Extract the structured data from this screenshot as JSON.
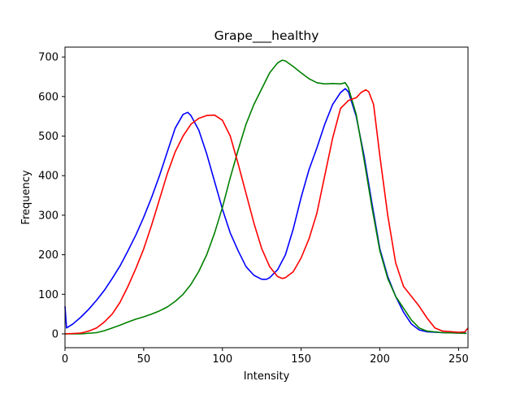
{
  "chart_data": {
    "type": "line",
    "title": "Grape___healthy",
    "xlabel": "Intensity",
    "ylabel": "Frequency",
    "xlim": [
      0,
      256
    ],
    "ylim": [
      -35,
      725
    ],
    "xticks": [
      0,
      50,
      100,
      150,
      200,
      250
    ],
    "yticks": [
      0,
      100,
      200,
      300,
      400,
      500,
      600,
      700
    ],
    "grid": false,
    "legend": "none",
    "series": [
      {
        "color": "#0000ff",
        "points": [
          [
            0,
            70
          ],
          [
            1,
            15
          ],
          [
            5,
            25
          ],
          [
            10,
            42
          ],
          [
            15,
            62
          ],
          [
            20,
            85
          ],
          [
            25,
            110
          ],
          [
            30,
            140
          ],
          [
            35,
            172
          ],
          [
            40,
            210
          ],
          [
            45,
            250
          ],
          [
            50,
            295
          ],
          [
            55,
            345
          ],
          [
            60,
            400
          ],
          [
            65,
            460
          ],
          [
            70,
            520
          ],
          [
            75,
            555
          ],
          [
            78,
            560
          ],
          [
            80,
            552
          ],
          [
            85,
            515
          ],
          [
            90,
            455
          ],
          [
            95,
            385
          ],
          [
            100,
            315
          ],
          [
            105,
            255
          ],
          [
            110,
            210
          ],
          [
            115,
            170
          ],
          [
            120,
            148
          ],
          [
            125,
            138
          ],
          [
            128,
            138
          ],
          [
            130,
            142
          ],
          [
            135,
            162
          ],
          [
            140,
            200
          ],
          [
            145,
            265
          ],
          [
            150,
            345
          ],
          [
            155,
            415
          ],
          [
            160,
            470
          ],
          [
            165,
            530
          ],
          [
            170,
            580
          ],
          [
            175,
            610
          ],
          [
            178,
            620
          ],
          [
            180,
            612
          ],
          [
            185,
            550
          ],
          [
            190,
            450
          ],
          [
            195,
            330
          ],
          [
            200,
            215
          ],
          [
            205,
            145
          ],
          [
            210,
            95
          ],
          [
            215,
            55
          ],
          [
            220,
            25
          ],
          [
            225,
            10
          ],
          [
            230,
            5
          ],
          [
            240,
            3
          ],
          [
            250,
            2
          ],
          [
            255,
            2
          ]
        ]
      },
      {
        "color": "#008000",
        "points": [
          [
            0,
            0
          ],
          [
            10,
            0
          ],
          [
            20,
            3
          ],
          [
            25,
            8
          ],
          [
            30,
            15
          ],
          [
            35,
            22
          ],
          [
            40,
            30
          ],
          [
            45,
            37
          ],
          [
            50,
            43
          ],
          [
            55,
            50
          ],
          [
            60,
            58
          ],
          [
            65,
            68
          ],
          [
            70,
            82
          ],
          [
            75,
            100
          ],
          [
            80,
            125
          ],
          [
            85,
            158
          ],
          [
            90,
            200
          ],
          [
            95,
            255
          ],
          [
            100,
            320
          ],
          [
            105,
            395
          ],
          [
            110,
            465
          ],
          [
            115,
            530
          ],
          [
            120,
            580
          ],
          [
            125,
            620
          ],
          [
            130,
            660
          ],
          [
            135,
            685
          ],
          [
            138,
            692
          ],
          [
            140,
            690
          ],
          [
            145,
            676
          ],
          [
            150,
            660
          ],
          [
            155,
            645
          ],
          [
            160,
            635
          ],
          [
            165,
            632
          ],
          [
            170,
            633
          ],
          [
            175,
            632
          ],
          [
            178,
            635
          ],
          [
            180,
            622
          ],
          [
            185,
            555
          ],
          [
            190,
            440
          ],
          [
            195,
            320
          ],
          [
            200,
            210
          ],
          [
            205,
            140
          ],
          [
            210,
            95
          ],
          [
            215,
            65
          ],
          [
            220,
            35
          ],
          [
            225,
            15
          ],
          [
            230,
            7
          ],
          [
            240,
            3
          ],
          [
            250,
            2
          ],
          [
            255,
            1
          ]
        ]
      },
      {
        "color": "#ff0000",
        "points": [
          [
            0,
            0
          ],
          [
            10,
            2
          ],
          [
            15,
            7
          ],
          [
            20,
            15
          ],
          [
            25,
            30
          ],
          [
            30,
            50
          ],
          [
            35,
            80
          ],
          [
            40,
            120
          ],
          [
            45,
            165
          ],
          [
            50,
            215
          ],
          [
            55,
            275
          ],
          [
            60,
            340
          ],
          [
            65,
            405
          ],
          [
            70,
            460
          ],
          [
            75,
            500
          ],
          [
            80,
            530
          ],
          [
            85,
            545
          ],
          [
            90,
            552
          ],
          [
            95,
            553
          ],
          [
            100,
            540
          ],
          [
            105,
            500
          ],
          [
            110,
            430
          ],
          [
            115,
            355
          ],
          [
            120,
            280
          ],
          [
            125,
            215
          ],
          [
            130,
            170
          ],
          [
            135,
            145
          ],
          [
            138,
            140
          ],
          [
            140,
            142
          ],
          [
            145,
            157
          ],
          [
            150,
            192
          ],
          [
            155,
            240
          ],
          [
            160,
            305
          ],
          [
            165,
            400
          ],
          [
            170,
            495
          ],
          [
            175,
            570
          ],
          [
            180,
            590
          ],
          [
            185,
            597
          ],
          [
            188,
            610
          ],
          [
            191,
            617
          ],
          [
            193,
            612
          ],
          [
            196,
            580
          ],
          [
            200,
            450
          ],
          [
            205,
            300
          ],
          [
            210,
            180
          ],
          [
            215,
            120
          ],
          [
            220,
            95
          ],
          [
            225,
            70
          ],
          [
            230,
            40
          ],
          [
            235,
            15
          ],
          [
            240,
            7
          ],
          [
            250,
            4
          ],
          [
            254,
            5
          ],
          [
            256,
            15
          ]
        ]
      }
    ]
  }
}
